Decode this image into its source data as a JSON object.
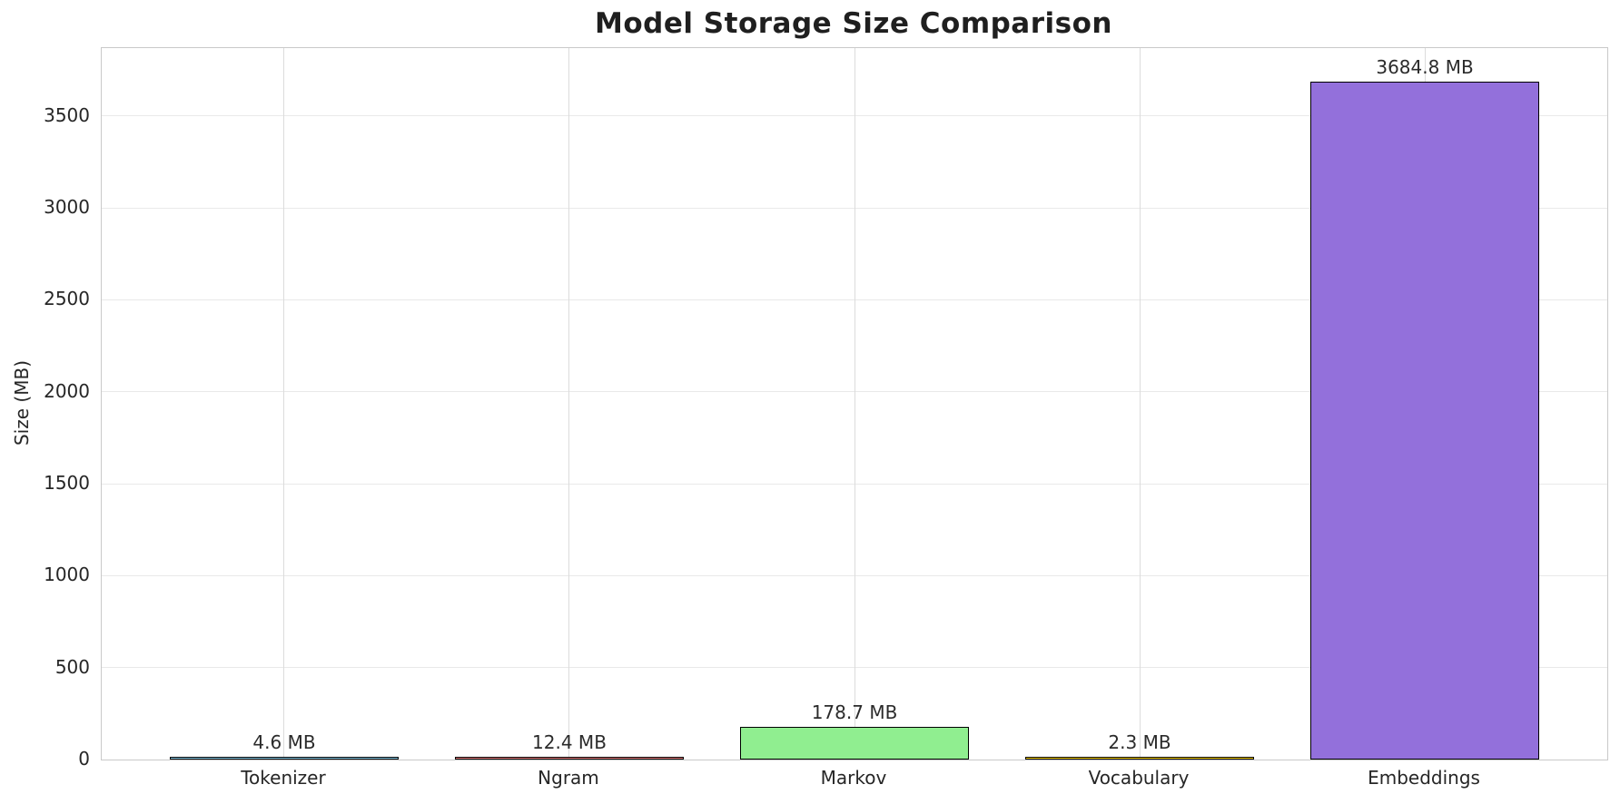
{
  "chart_data": {
    "type": "bar",
    "title": "Model Storage Size Comparison",
    "xlabel": "",
    "ylabel": "Size (MB)",
    "categories": [
      "Tokenizer",
      "Ngram",
      "Markov",
      "Vocabulary",
      "Embeddings"
    ],
    "values": [
      4.6,
      12.4,
      178.7,
      2.3,
      3684.8
    ],
    "value_labels": [
      "4.6 MB",
      "12.4 MB",
      "178.7 MB",
      "2.3 MB",
      "3684.8 MB"
    ],
    "bar_colors": [
      "#87CEEB",
      "#F08080",
      "#90EE90",
      "#FFD700",
      "#9370DB"
    ],
    "bar_edge_color": "#000000",
    "ylim": [
      0,
      3869
    ],
    "yticks": [
      0,
      500,
      1000,
      1500,
      2000,
      2500,
      3000,
      3500
    ],
    "grid": true,
    "grid_color_horizontal": "#e9e9e9",
    "grid_color_vertical": "#dcdcdc",
    "spine_color": "#c9c9c9",
    "background_color": "#ffffff",
    "text_color": "#262626",
    "title_color": "#1f1f1f",
    "legend": null
  }
}
